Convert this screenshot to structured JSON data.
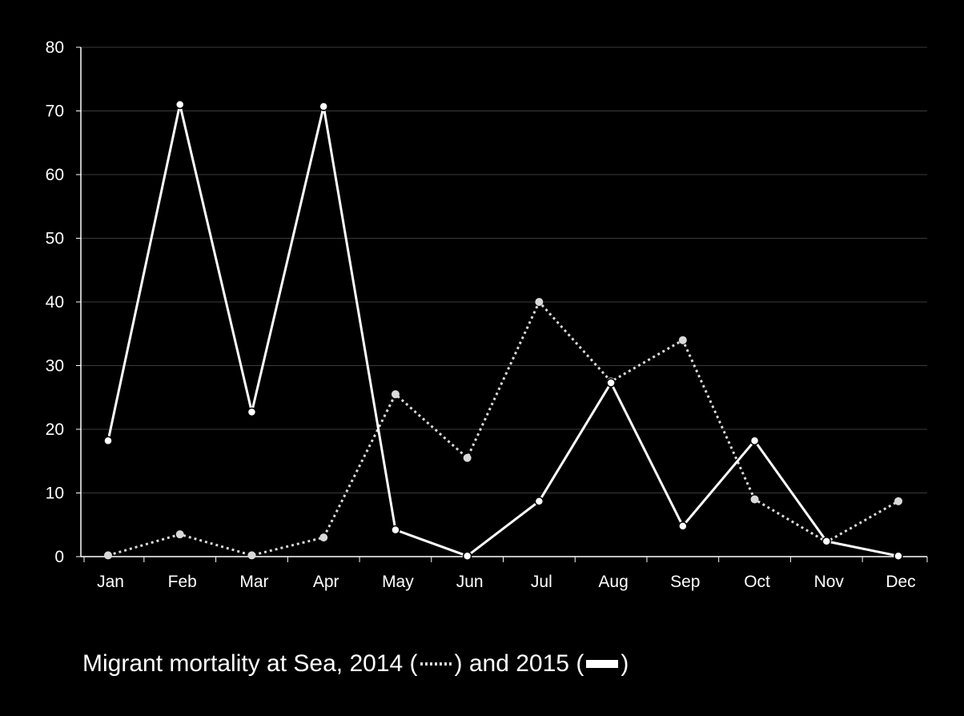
{
  "chart_data": {
    "type": "line",
    "title": "",
    "xlabel": "",
    "ylabel": "",
    "categories": [
      "Jan",
      "Feb",
      "Mar",
      "Apr",
      "May",
      "Jun",
      "Jul",
      "Aug",
      "Sep",
      "Oct",
      "Nov",
      "Dec"
    ],
    "ylim": [
      0,
      80
    ],
    "yticks": [
      0,
      10,
      20,
      30,
      40,
      50,
      60,
      70,
      80
    ],
    "grid": true,
    "series": [
      {
        "name": "2014",
        "style": "dotted",
        "color": "#d9d9d9",
        "values": [
          0.2,
          3.5,
          0.2,
          3.0,
          25.5,
          15.5,
          40.0,
          27.5,
          34.0,
          9.0,
          2.3,
          8.7
        ]
      },
      {
        "name": "2015",
        "style": "solid",
        "color": "#ffffff",
        "values": [
          18.2,
          71.0,
          22.7,
          70.7,
          4.2,
          0.1,
          8.7,
          27.3,
          4.8,
          18.2,
          2.4,
          0.1
        ]
      }
    ]
  },
  "caption": {
    "prefix": "Migrant mortality at Sea, 2014 (",
    "middle": ") and 2015 (",
    "suffix": ")"
  },
  "colors": {
    "background": "#000000",
    "axis": "#ffffff",
    "grid": "#3a3a3a"
  }
}
